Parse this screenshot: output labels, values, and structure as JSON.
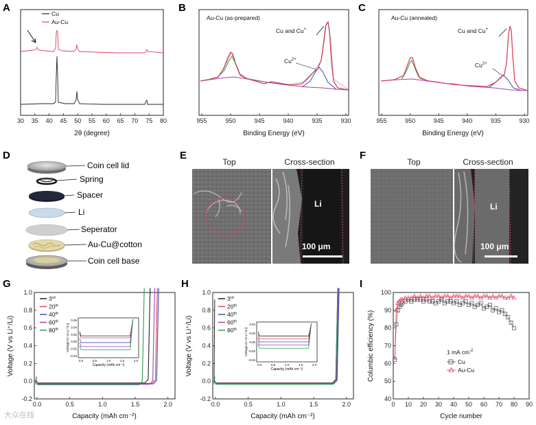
{
  "panels": {
    "A": "A",
    "B": "B",
    "C": "C",
    "D": "D",
    "E": "E",
    "F": "F",
    "G": "G",
    "H": "H",
    "I": "I"
  },
  "A": {
    "legend": [
      "Cu",
      "Au-Cu"
    ],
    "xlabel": "2θ (degree)",
    "xticks": [
      "30",
      "35",
      "40",
      "45",
      "50",
      "55",
      "60",
      "65",
      "70",
      "75",
      "80"
    ],
    "colors": {
      "Cu": "#222222",
      "AuCu": "#e0405a"
    }
  },
  "B": {
    "title": "Au-Cu (as-prepared)",
    "ann1": "Cu and Cu",
    "ann1_sup": "+",
    "ann2": "Cu",
    "ann2_sup": "2+",
    "xlabel": "Binding Energy (eV)",
    "xticks": [
      "955",
      "950",
      "945",
      "940",
      "935",
      "930"
    ]
  },
  "C": {
    "title": "Au-Cu (annealed)",
    "ann1": "Cu and Cu",
    "ann1_sup": "+",
    "ann2": "Cu",
    "ann2_sup": "2+",
    "xlabel": "Binding Energy (eV)",
    "xticks": [
      "955",
      "950",
      "945",
      "940",
      "935",
      "930"
    ]
  },
  "D": {
    "labels": [
      "Coin cell lid",
      "Spring",
      "Spacer",
      "Li",
      "Seperator",
      "Au-Cu@cotton",
      "Coin cell base"
    ]
  },
  "E": {
    "top": "Top",
    "cross": "Cross-section",
    "li": "Li",
    "scale": "100 μm"
  },
  "F": {
    "top": "Top",
    "cross": "Cross-section",
    "li": "Li",
    "scale": "100 μm"
  },
  "G": {
    "ylabel": "Voltage (V vs Li⁺/Li)",
    "xlabel": "Capacity (mAh cm⁻²)",
    "yticks": [
      "1.0",
      "0.8",
      "0.6",
      "0.4",
      "0.2",
      "0.0",
      "-0.2"
    ],
    "xticks": [
      "0.0",
      "0.5",
      "1.0",
      "1.5",
      "2.0"
    ],
    "legend": [
      {
        "n": "3",
        "s": "rd",
        "color": "#222222"
      },
      {
        "n": "20",
        "s": "th",
        "color": "#e0405a"
      },
      {
        "n": "40",
        "s": "th",
        "color": "#3a4fa8"
      },
      {
        "n": "60",
        "s": "th",
        "color": "#a040b0"
      },
      {
        "n": "80",
        "s": "th",
        "color": "#2e9a55"
      }
    ],
    "inset": {
      "ylabel": "Voltage (V vs Li⁺/Li)",
      "xlabel": "Capacity (mAh cm⁻²)",
      "yticks": [
        "0.06",
        "0.04",
        "0.02",
        "0.00",
        "-0.02",
        "-0.04"
      ],
      "xticks": [
        "0.0",
        "0.5",
        "1.0",
        "1.5",
        "2.0"
      ]
    }
  },
  "H": {
    "ylabel": "Voltage (V vs Li⁺/Li)",
    "xlabel": "Capacity (mAh cm⁻²)",
    "yticks": [
      "1.0",
      "0.8",
      "0.6",
      "0.4",
      "0.2",
      "0.0",
      "-0.2"
    ],
    "xticks": [
      "0.0",
      "0.5",
      "1.0",
      "1.5",
      "2.0"
    ],
    "legend": [
      {
        "n": "3",
        "s": "rd",
        "color": "#222222"
      },
      {
        "n": "20",
        "s": "th",
        "color": "#e0405a"
      },
      {
        "n": "40",
        "s": "th",
        "color": "#3a4fa8"
      },
      {
        "n": "60",
        "s": "th",
        "color": "#a040b0"
      },
      {
        "n": "80",
        "s": "th",
        "color": "#2e9a55"
      }
    ],
    "inset": {
      "ylabel": "Voltage (V vs Li⁺/Li)",
      "xlabel": "Capacity (mAh cm⁻²)",
      "yticks": [
        "0.04",
        "0.02",
        "0.00",
        "-0.02",
        "-0.04"
      ],
      "xticks": [
        "0.0",
        "0.5",
        "1.0",
        "1.5",
        "2.0"
      ]
    }
  },
  "I": {
    "ylabel": "Columbic efficiency (%)",
    "xlabel": "Cycle number",
    "rate": "1 mA cm",
    "rate_sup": "-2",
    "legend": [
      "Cu",
      "Au-Cu"
    ],
    "yticks": [
      "100",
      "90",
      "80",
      "70",
      "60",
      "50",
      "40"
    ],
    "xticks": [
      "0",
      "10",
      "20",
      "30",
      "40",
      "50",
      "60",
      "70",
      "80",
      "90"
    ]
  },
  "chart_data": [
    {
      "panel": "I",
      "type": "scatter",
      "xlabel": "Cycle number",
      "ylabel": "Columbic efficiency (%)",
      "xlim": [
        0,
        90
      ],
      "ylim": [
        40,
        100
      ],
      "series": [
        {
          "name": "Cu",
          "x": [
            1,
            2,
            3,
            4,
            5,
            6,
            8,
            10,
            12,
            14,
            16,
            18,
            20,
            22,
            24,
            26,
            28,
            30,
            32,
            34,
            36,
            38,
            40,
            42,
            44,
            46,
            48,
            50,
            52,
            54,
            56,
            58,
            60,
            62,
            64,
            66,
            68,
            70,
            72,
            74,
            76,
            78,
            80
          ],
          "values": [
            62,
            82,
            90,
            92,
            93,
            94,
            95,
            96,
            95,
            96,
            96,
            96,
            95,
            96,
            95,
            95,
            94,
            95,
            96,
            94,
            95,
            95,
            94,
            95,
            93,
            94,
            95,
            93,
            94,
            92,
            93,
            94,
            91,
            92,
            93,
            90,
            91,
            89,
            90,
            88,
            86,
            83,
            80
          ]
        },
        {
          "name": "Au-Cu",
          "x": [
            1,
            2,
            3,
            4,
            5,
            6,
            8,
            10,
            12,
            14,
            16,
            18,
            20,
            22,
            24,
            26,
            28,
            30,
            32,
            34,
            36,
            38,
            40,
            42,
            44,
            46,
            48,
            50,
            52,
            54,
            56,
            58,
            60,
            62,
            64,
            66,
            68,
            70,
            72,
            74,
            76,
            78,
            80
          ],
          "values": [
            63,
            90,
            94,
            95,
            96,
            96,
            97,
            97,
            97,
            98,
            97,
            98,
            97,
            98,
            98,
            97,
            98,
            98,
            97,
            98,
            98,
            97,
            98,
            98,
            98,
            97,
            98,
            98,
            97,
            98,
            98,
            97,
            98,
            98,
            97,
            98,
            97,
            98,
            98,
            97,
            97,
            98,
            97
          ]
        }
      ]
    }
  ],
  "watermark": "大众在线"
}
